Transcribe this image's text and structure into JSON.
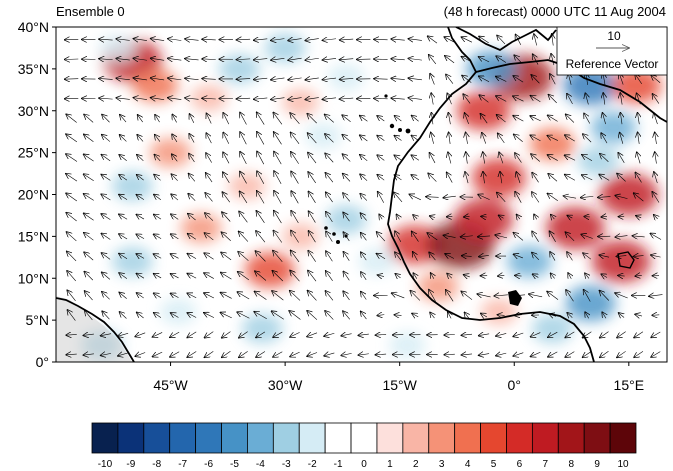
{
  "header": {
    "left_title": "Ensemble 0",
    "right_title": "(48 h forecast) 0000 UTC 11 Aug 2004"
  },
  "reference_vector": {
    "magnitude": "10",
    "label": "Reference Vector"
  },
  "axes": {
    "lat_ticks": [
      {
        "value": 40,
        "label": "40°N"
      },
      {
        "value": 35,
        "label": "35°N"
      },
      {
        "value": 30,
        "label": "30°N"
      },
      {
        "value": 25,
        "label": "25°N"
      },
      {
        "value": 20,
        "label": "20°N"
      },
      {
        "value": 15,
        "label": "15°N"
      },
      {
        "value": 10,
        "label": "10°N"
      },
      {
        "value": 5,
        "label": "5°N"
      },
      {
        "value": 0,
        "label": "0°"
      }
    ],
    "lon_ticks": [
      {
        "value": -45,
        "label": "45°W"
      },
      {
        "value": -30,
        "label": "30°W"
      },
      {
        "value": -15,
        "label": "15°W"
      },
      {
        "value": 0,
        "label": "0°"
      },
      {
        "value": 15,
        "label": "15°E"
      }
    ],
    "lon_range": [
      -60,
      20
    ],
    "lat_range": [
      0,
      40
    ]
  },
  "colorbar": {
    "labels": [
      "-10",
      "-9",
      "-8",
      "-7",
      "-6",
      "-5",
      "-4",
      "-3",
      "-2",
      "-1",
      "0",
      "1",
      "2",
      "3",
      "4",
      "5",
      "6",
      "7",
      "8",
      "9",
      "10"
    ],
    "colors": [
      "#08214f",
      "#0b3278",
      "#174f99",
      "#2366ad",
      "#2f77b8",
      "#4692c6",
      "#6aadd5",
      "#9fcfe3",
      "#d5ecf5",
      "#ffffff",
      "#ffffff",
      "#fde0dc",
      "#f9b5a6",
      "#f59277",
      "#f07050",
      "#e5472f",
      "#d42b27",
      "#bf1b22",
      "#a21519",
      "#7e0e13",
      "#5d0509"
    ]
  },
  "field": {
    "blobs": [
      {
        "lon": -50,
        "lat": 36,
        "v": 7
      },
      {
        "lon": -47,
        "lat": 33,
        "v": 4
      },
      {
        "lon": -36,
        "lat": 35,
        "v": -3
      },
      {
        "lon": -30,
        "lat": 37.5,
        "v": -3
      },
      {
        "lon": -22,
        "lat": 34,
        "v": -2
      },
      {
        "lon": -52,
        "lat": 37.5,
        "v": -2
      },
      {
        "lon": -40,
        "lat": 31.5,
        "v": 2
      },
      {
        "lon": -28,
        "lat": 31,
        "v": 2
      },
      {
        "lon": -45,
        "lat": 25,
        "v": 3
      },
      {
        "lon": -35,
        "lat": 21,
        "v": 2
      },
      {
        "lon": -50,
        "lat": 21,
        "v": -3
      },
      {
        "lon": -25,
        "lat": 27,
        "v": -2
      },
      {
        "lon": -41,
        "lat": 16,
        "v": 3
      },
      {
        "lon": -32,
        "lat": 11,
        "v": 5
      },
      {
        "lon": -28,
        "lat": 15,
        "v": 2
      },
      {
        "lon": -50,
        "lat": 12,
        "v": -3
      },
      {
        "lon": -44,
        "lat": 6,
        "v": -2
      },
      {
        "lon": -33,
        "lat": 4,
        "v": -3
      },
      {
        "lon": -22,
        "lat": 17,
        "v": -3
      },
      {
        "lon": -18,
        "lat": 12,
        "v": -2
      },
      {
        "lon": -54,
        "lat": 2,
        "v": -3
      },
      {
        "lon": -13,
        "lat": 14,
        "v": 6
      },
      {
        "lon": -7,
        "lat": 14,
        "v": 9
      },
      {
        "lon": -4,
        "lat": 17,
        "v": 7
      },
      {
        "lon": -2,
        "lat": 22,
        "v": 6
      },
      {
        "lon": -10,
        "lat": 9,
        "v": 3
      },
      {
        "lon": 1,
        "lat": 34,
        "v": 8
      },
      {
        "lon": -4,
        "lat": 30,
        "v": 6
      },
      {
        "lon": -3,
        "lat": 35,
        "v": -5
      },
      {
        "lon": 5,
        "lat": 26,
        "v": 4
      },
      {
        "lon": 10,
        "lat": 33,
        "v": -6
      },
      {
        "lon": 13,
        "lat": 28,
        "v": -4
      },
      {
        "lon": 16,
        "lat": 33,
        "v": 5
      },
      {
        "lon": 15,
        "lat": 20,
        "v": 7
      },
      {
        "lon": 8,
        "lat": 16,
        "v": 7
      },
      {
        "lon": 14,
        "lat": 12,
        "v": 7
      },
      {
        "lon": 2,
        "lat": 12,
        "v": -4
      },
      {
        "lon": 10,
        "lat": 7,
        "v": -5
      },
      {
        "lon": 5,
        "lat": 4,
        "v": -3
      },
      {
        "lon": -2,
        "lat": 6,
        "v": 2
      },
      {
        "lon": -14,
        "lat": 2,
        "v": -2
      },
      {
        "lon": 11,
        "lat": 24,
        "v": -3
      }
    ]
  }
}
